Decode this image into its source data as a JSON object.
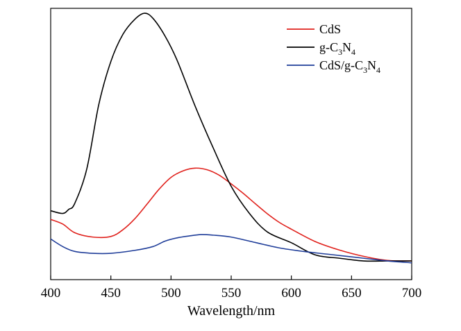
{
  "chart_data": {
    "type": "line",
    "xlabel": "Wavelength/nm",
    "ylabel": "",
    "xlim": [
      400,
      700
    ],
    "ylim": [
      0,
      100
    ],
    "x_ticks": [
      "400",
      "450",
      "500",
      "550",
      "600",
      "650",
      "700"
    ],
    "y_ticks_visible": false,
    "grid": false,
    "legend": "top-right",
    "legend_entries": [
      {
        "id": "cds",
        "text": "CdS",
        "sub": []
      },
      {
        "id": "gc3n4",
        "text": "g-C",
        "sub": [
          {
            "s": "3",
            "t": "N"
          },
          {
            "s": "4",
            "t": ""
          }
        ]
      },
      {
        "id": "composite",
        "text": "CdS/g-C",
        "sub": [
          {
            "s": "3",
            "t": "N"
          },
          {
            "s": "4",
            "t": ""
          }
        ]
      }
    ],
    "series": [
      {
        "id": "cds",
        "color": "#e0201b",
        "x": [
          400,
          410,
          420,
          435,
          450,
          460,
          470,
          480,
          490,
          500,
          510,
          520,
          530,
          540,
          550,
          560,
          570,
          580,
          590,
          600,
          620,
          640,
          660,
          680,
          700
        ],
        "y": [
          22.2,
          20.5,
          17.3,
          15.7,
          15.9,
          18.4,
          22.5,
          27.8,
          33.3,
          37.7,
          40.1,
          41.1,
          40.5,
          38.5,
          35.3,
          31.8,
          28.0,
          24.3,
          21.1,
          18.6,
          14.0,
          10.9,
          8.6,
          7.1,
          6.9
        ]
      },
      {
        "id": "gc3n4",
        "color": "#000000",
        "x": [
          400,
          410,
          415,
          420,
          430,
          440,
          450,
          460,
          470,
          478,
          485,
          495,
          505,
          520,
          535,
          550,
          565,
          580,
          600,
          620,
          640,
          660,
          680,
          700
        ],
        "y": [
          25.4,
          24.4,
          25.9,
          28.1,
          40.8,
          64.6,
          80.4,
          90.4,
          96.0,
          98.2,
          96.3,
          89.8,
          80.9,
          64.0,
          48.6,
          34.4,
          24.5,
          17.6,
          13.6,
          9.1,
          7.9,
          6.9,
          6.9,
          6.9
        ]
      },
      {
        "id": "composite",
        "color": "#1f3d99",
        "x": [
          400,
          410,
          420,
          435,
          450,
          470,
          485,
          495,
          505,
          515,
          525,
          535,
          550,
          570,
          590,
          610,
          630,
          660,
          680,
          700
        ],
        "y": [
          15.0,
          12.2,
          10.4,
          9.7,
          9.7,
          10.8,
          12.2,
          14.2,
          15.4,
          16.1,
          16.6,
          16.4,
          15.7,
          13.7,
          11.7,
          10.4,
          9.4,
          7.9,
          6.9,
          6.2
        ]
      }
    ]
  }
}
